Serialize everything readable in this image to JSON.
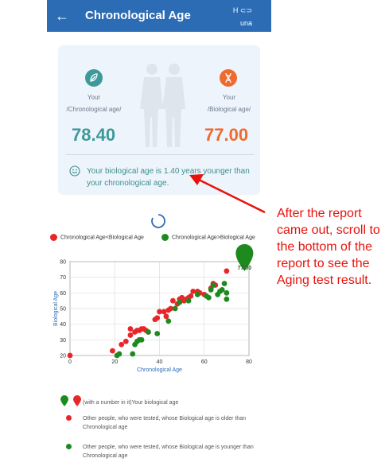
{
  "appbar": {
    "title": "Chronological Age",
    "bt_label": "H ⊂⊃",
    "device": "una"
  },
  "card": {
    "left_label_line1": "Your",
    "left_label_line2": "/Chronological age/",
    "right_label_line1": "Your",
    "right_label_line2": "/Biological age/",
    "chronological_value": "78.40",
    "biological_value": "77.00",
    "message": "Your biological age is 1.40 years younger than your chronological age."
  },
  "legend": {
    "red_label": "Chronological Age<Biological Age",
    "green_label": "Chronological Age>Biological Age",
    "pin_text": "(with a number in it)Your biological age",
    "red_desc": "Other people, who were tested, whose Biological age is older than Chronological age",
    "green_desc": "Other people, who were tested, whose Biological age is younger than Chronological age"
  },
  "annotation": {
    "text": "After the report came out, scroll to the bottom of the report to see the Aging test result."
  },
  "colors": {
    "appbar": "#2b6cb5",
    "red": "#e8262a",
    "green": "#1e8a1e",
    "teal": "#3d9a9a",
    "orange": "#ef6a2f",
    "annotation": "#e8110b"
  },
  "chart_data": {
    "type": "scatter",
    "xlabel": "Chronological Age",
    "ylabel": "Biological Age",
    "xlim": [
      0,
      80
    ],
    "ylim": [
      20,
      80
    ],
    "xticks": [
      0,
      20,
      40,
      60,
      80
    ],
    "yticks": [
      20,
      30,
      40,
      50,
      60,
      70,
      80
    ],
    "grid": true,
    "pin": {
      "x": 78,
      "y": 77,
      "label": "77.00"
    },
    "series": [
      {
        "color": "red",
        "points": [
          [
            0,
            20
          ],
          [
            19,
            23
          ],
          [
            23,
            27
          ],
          [
            25,
            29
          ],
          [
            27,
            33
          ],
          [
            27,
            37
          ],
          [
            29,
            35
          ],
          [
            30,
            36
          ],
          [
            31,
            36
          ],
          [
            32,
            37
          ],
          [
            33,
            37
          ],
          [
            34,
            36
          ],
          [
            35,
            35
          ],
          [
            38,
            43
          ],
          [
            39,
            44
          ],
          [
            40,
            48
          ],
          [
            42,
            48
          ],
          [
            43,
            45
          ],
          [
            44,
            49
          ],
          [
            45,
            50
          ],
          [
            46,
            55
          ],
          [
            48,
            53
          ],
          [
            49,
            56
          ],
          [
            50,
            57
          ],
          [
            51,
            55
          ],
          [
            52,
            56
          ],
          [
            53,
            57
          ],
          [
            54,
            58
          ],
          [
            55,
            61
          ],
          [
            57,
            61
          ],
          [
            58,
            60
          ],
          [
            60,
            59
          ],
          [
            63,
            63
          ],
          [
            64,
            66
          ],
          [
            65,
            65
          ],
          [
            70,
            74
          ]
        ]
      },
      {
        "color": "green",
        "points": [
          [
            21,
            20
          ],
          [
            22,
            21
          ],
          [
            28,
            21
          ],
          [
            29,
            27
          ],
          [
            30,
            29
          ],
          [
            31,
            30
          ],
          [
            32,
            30
          ],
          [
            35,
            35
          ],
          [
            39,
            34
          ],
          [
            44,
            42
          ],
          [
            47,
            50
          ],
          [
            49,
            54
          ],
          [
            53,
            55
          ],
          [
            57,
            59
          ],
          [
            61,
            58
          ],
          [
            62,
            57
          ],
          [
            63,
            62
          ],
          [
            64,
            65
          ],
          [
            66,
            59
          ],
          [
            67,
            61
          ],
          [
            68,
            62
          ],
          [
            69,
            66
          ],
          [
            70,
            56
          ],
          [
            70,
            60
          ]
        ]
      }
    ]
  }
}
